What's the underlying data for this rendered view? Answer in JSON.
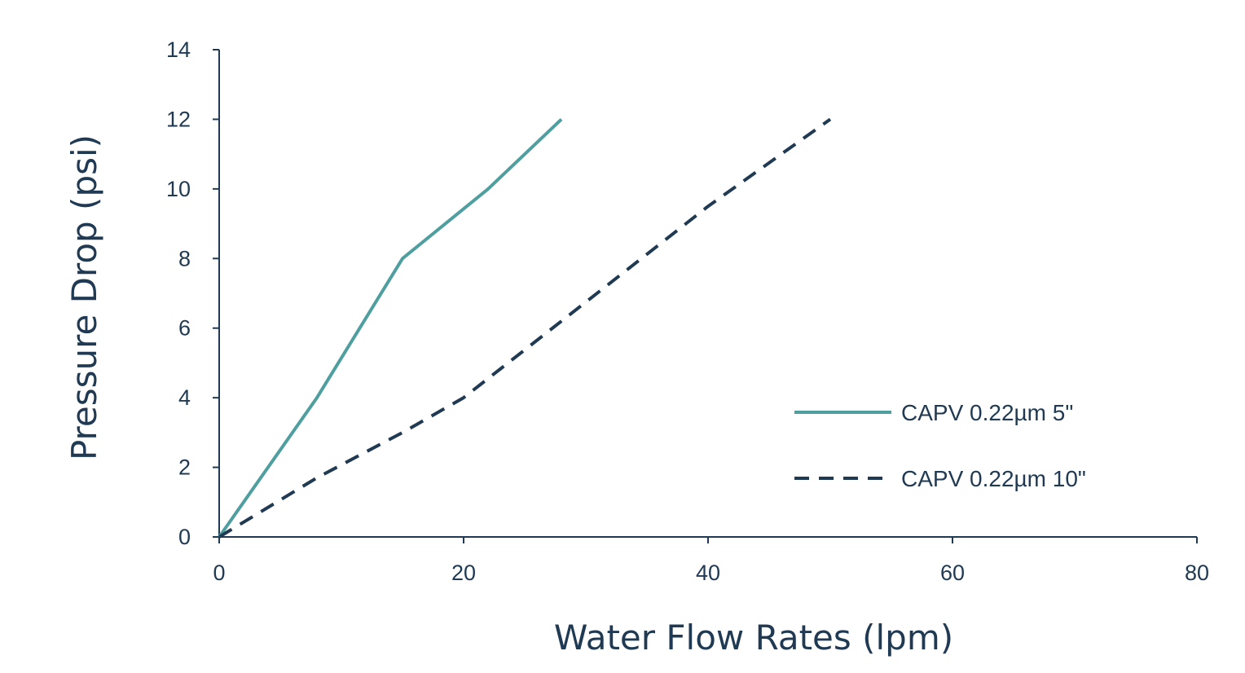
{
  "chart_data": {
    "type": "line",
    "title": "",
    "xlabel": "Water Flow Rates (lpm)",
    "ylabel": "Pressure Drop (psi)",
    "xlim": [
      0,
      80
    ],
    "ylim": [
      0,
      14
    ],
    "xticks": [
      0,
      20,
      40,
      60,
      80
    ],
    "yticks": [
      0,
      2,
      4,
      6,
      8,
      10,
      12,
      14
    ],
    "grid": false,
    "legend_position": "right",
    "axis_color": "#1f3a52",
    "series": [
      {
        "name": "CAPV 0.22µm 5\"",
        "color": "#4f9ea0",
        "style": "solid",
        "x": [
          0,
          8,
          15,
          22,
          28
        ],
        "y": [
          0,
          4,
          8,
          10,
          12
        ]
      },
      {
        "name": "CAPV 0.22µm 10\"",
        "color": "#1f3a52",
        "style": "dashed",
        "x": [
          0,
          8,
          15,
          20,
          28,
          40,
          50
        ],
        "y": [
          0,
          1.7,
          3,
          4,
          6.2,
          9.5,
          12
        ]
      }
    ]
  }
}
